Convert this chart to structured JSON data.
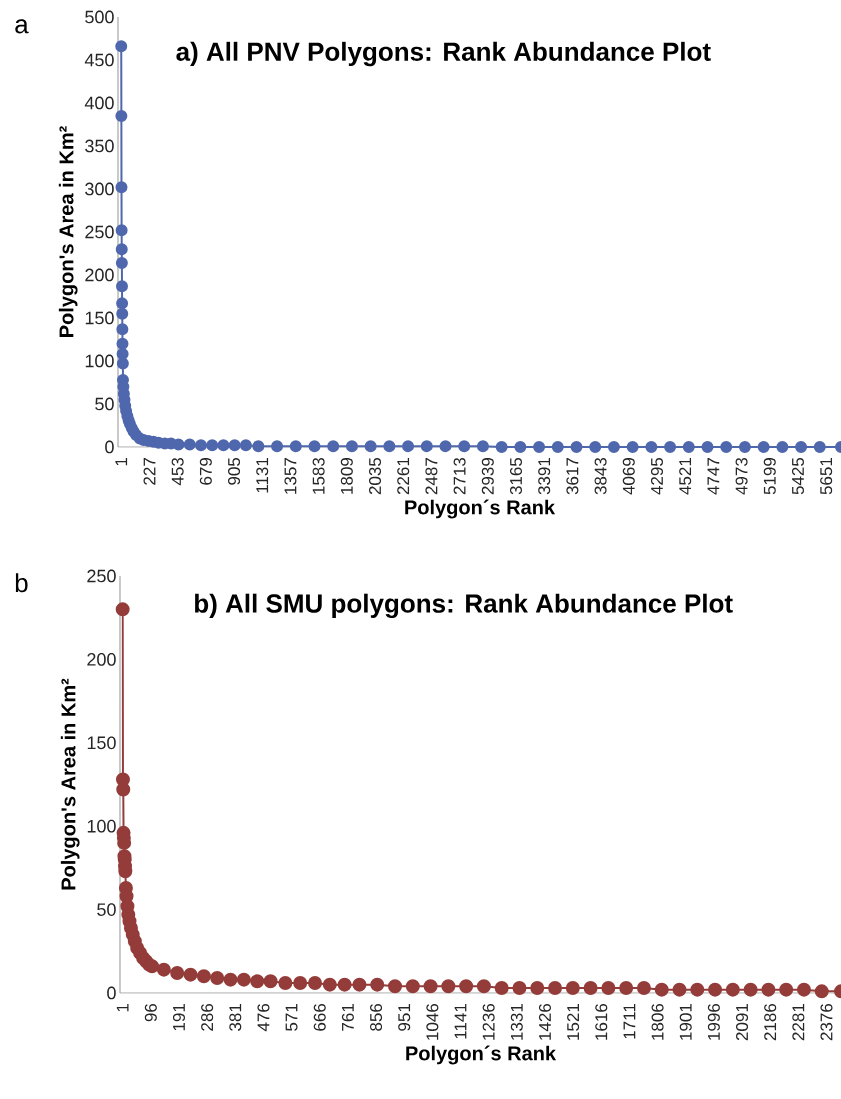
{
  "chart_data": [
    {
      "type": "line",
      "title": "a) All PNV Polygons: Rank Abundance Plot",
      "xlabel": "Polygon´s Rank",
      "ylabel": "Polygon's  Area in  Km²",
      "annotations": [
        "a"
      ],
      "marker": "circle",
      "line_style": "solid",
      "xlim": [
        -25,
        5770
      ],
      "ylim": [
        0,
        500
      ],
      "xticks": [
        1,
        227,
        453,
        679,
        905,
        1131,
        1357,
        1583,
        1809,
        2035,
        2261,
        2487,
        2713,
        2939,
        3165,
        3391,
        3617,
        3843,
        4069,
        4295,
        4521,
        4747,
        4973,
        5199,
        5425,
        5651
      ],
      "yticks": [
        0,
        50,
        100,
        150,
        200,
        250,
        300,
        350,
        400,
        450,
        500
      ],
      "series": [
        {
          "color": "#4f67ad",
          "x": [
            1,
            2,
            3,
            4,
            5,
            6,
            7,
            8,
            9,
            10,
            11,
            12,
            14,
            15,
            18,
            22,
            27,
            33,
            40,
            50,
            60,
            70,
            85,
            100,
            120,
            150,
            180,
            220,
            260,
            300,
            350,
            400,
            460,
            550,
            640,
            730,
            820,
            910,
            1000,
            1100,
            1250,
            1400,
            1550,
            1700,
            1850,
            2000,
            2150,
            2300,
            2450,
            2600,
            2750,
            2900,
            3050,
            3200,
            3350,
            3500,
            3650,
            3800,
            3950,
            4100,
            4250,
            4400,
            4550,
            4700,
            4850,
            5000,
            5150,
            5300,
            5450,
            5600,
            5770
          ],
          "values": [
            466,
            385,
            302,
            252,
            230,
            214,
            187,
            167,
            155,
            137,
            120,
            108,
            97,
            78,
            70,
            62,
            55,
            48,
            42,
            36,
            31,
            27,
            22,
            18,
            14,
            10,
            8,
            7,
            6,
            5,
            4,
            4,
            3,
            3,
            2,
            2,
            2,
            2,
            2,
            1,
            1,
            1,
            1,
            1,
            1,
            1,
            1,
            1,
            1,
            1,
            1,
            1,
            0,
            0,
            0,
            0,
            0,
            0,
            0,
            0,
            0,
            0,
            0,
            0,
            0,
            0,
            0,
            0,
            0,
            0,
            0
          ]
        }
      ]
    },
    {
      "type": "line",
      "title": "b) All SMU polygons: Rank Abundance Plot",
      "xlabel": "Polygon´s Rank",
      "ylabel": "Polygon's  Area in  Km²",
      "annotations": [
        "b"
      ],
      "marker": "circle",
      "line_style": "solid",
      "xlim": [
        -8,
        2425
      ],
      "ylim": [
        0,
        250
      ],
      "xticks": [
        1,
        96,
        191,
        286,
        381,
        476,
        571,
        666,
        761,
        856,
        951,
        1046,
        1141,
        1236,
        1331,
        1426,
        1521,
        1616,
        1711,
        1806,
        1901,
        1996,
        2091,
        2186,
        2281,
        2376
      ],
      "yticks": [
        0,
        50,
        100,
        150,
        200,
        250
      ],
      "series": [
        {
          "color": "#943c3a",
          "x": [
            1,
            2,
            3,
            4,
            5,
            6,
            7,
            8,
            9,
            10,
            12,
            14,
            17,
            20,
            24,
            29,
            35,
            42,
            50,
            60,
            70,
            80,
            90,
            100,
            140,
            185,
            230,
            275,
            320,
            365,
            410,
            455,
            500,
            550,
            600,
            650,
            700,
            750,
            800,
            860,
            920,
            980,
            1040,
            1100,
            1160,
            1220,
            1280,
            1340,
            1400,
            1460,
            1520,
            1580,
            1640,
            1700,
            1760,
            1820,
            1880,
            1940,
            2000,
            2060,
            2120,
            2180,
            2240,
            2300,
            2360,
            2425
          ],
          "values": [
            230,
            128,
            122,
            96,
            93,
            90,
            82,
            80,
            76,
            73,
            63,
            58,
            52,
            47,
            43,
            39,
            35,
            31,
            27,
            24,
            21,
            19,
            17,
            16,
            14,
            12,
            11,
            10,
            9,
            8,
            8,
            7,
            7,
            6,
            6,
            6,
            5,
            5,
            5,
            5,
            4,
            4,
            4,
            4,
            4,
            4,
            3,
            3,
            3,
            3,
            3,
            3,
            3,
            3,
            3,
            2,
            2,
            2,
            2,
            2,
            2,
            2,
            2,
            2,
            1,
            1
          ]
        }
      ]
    }
  ]
}
